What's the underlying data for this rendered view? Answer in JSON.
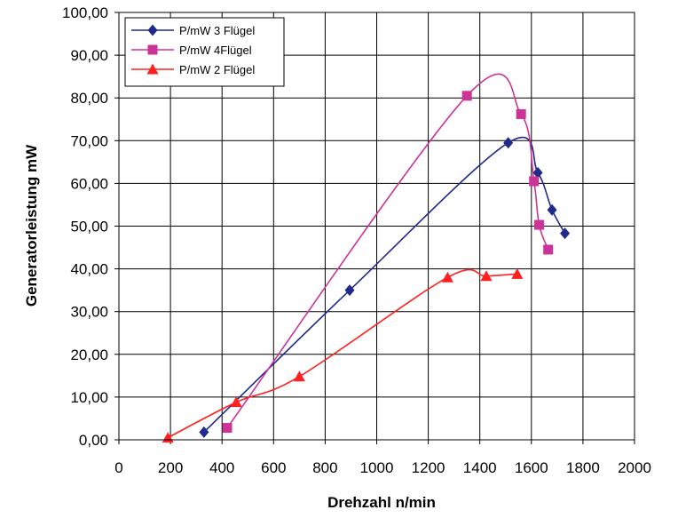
{
  "chart_data": {
    "type": "line",
    "xlabel": "Drehzahl n/min",
    "ylabel": "Generatorleistung mW",
    "xlim": [
      0,
      2000
    ],
    "ylim": [
      0,
      100
    ],
    "x_ticks": [
      "0",
      "200",
      "400",
      "600",
      "800",
      "1000",
      "1200",
      "1400",
      "1600",
      "1800",
      "2000"
    ],
    "y_ticks": [
      "0,00",
      "10,00",
      "20,00",
      "30,00",
      "40,00",
      "50,00",
      "60,00",
      "70,00",
      "80,00",
      "90,00",
      "100,00"
    ],
    "grid": true,
    "legend_position": "top-left",
    "series": [
      {
        "name": "P/mW 3 Flügel",
        "color": "#1F2A8C",
        "marker": "diamond",
        "points": [
          [
            330,
            1.8
          ],
          [
            895,
            35.0
          ],
          [
            1510,
            69.5
          ],
          [
            1625,
            62.5
          ],
          [
            1680,
            53.8
          ],
          [
            1730,
            48.3
          ]
        ]
      },
      {
        "name": "P/mW 4Flügel",
        "color": "#CC3399",
        "marker": "square",
        "points": [
          [
            420,
            2.8
          ],
          [
            1350,
            80.5
          ],
          [
            1560,
            76.2
          ],
          [
            1610,
            60.5
          ],
          [
            1630,
            50.3
          ],
          [
            1665,
            44.5
          ]
        ]
      },
      {
        "name": "P/mW 2 Flügel",
        "color": "#FF2020",
        "marker": "triangle",
        "points": [
          [
            190,
            0.5
          ],
          [
            455,
            8.8
          ],
          [
            700,
            14.8
          ],
          [
            1275,
            38.0
          ],
          [
            1425,
            38.3
          ],
          [
            1545,
            38.8
          ]
        ]
      }
    ]
  }
}
